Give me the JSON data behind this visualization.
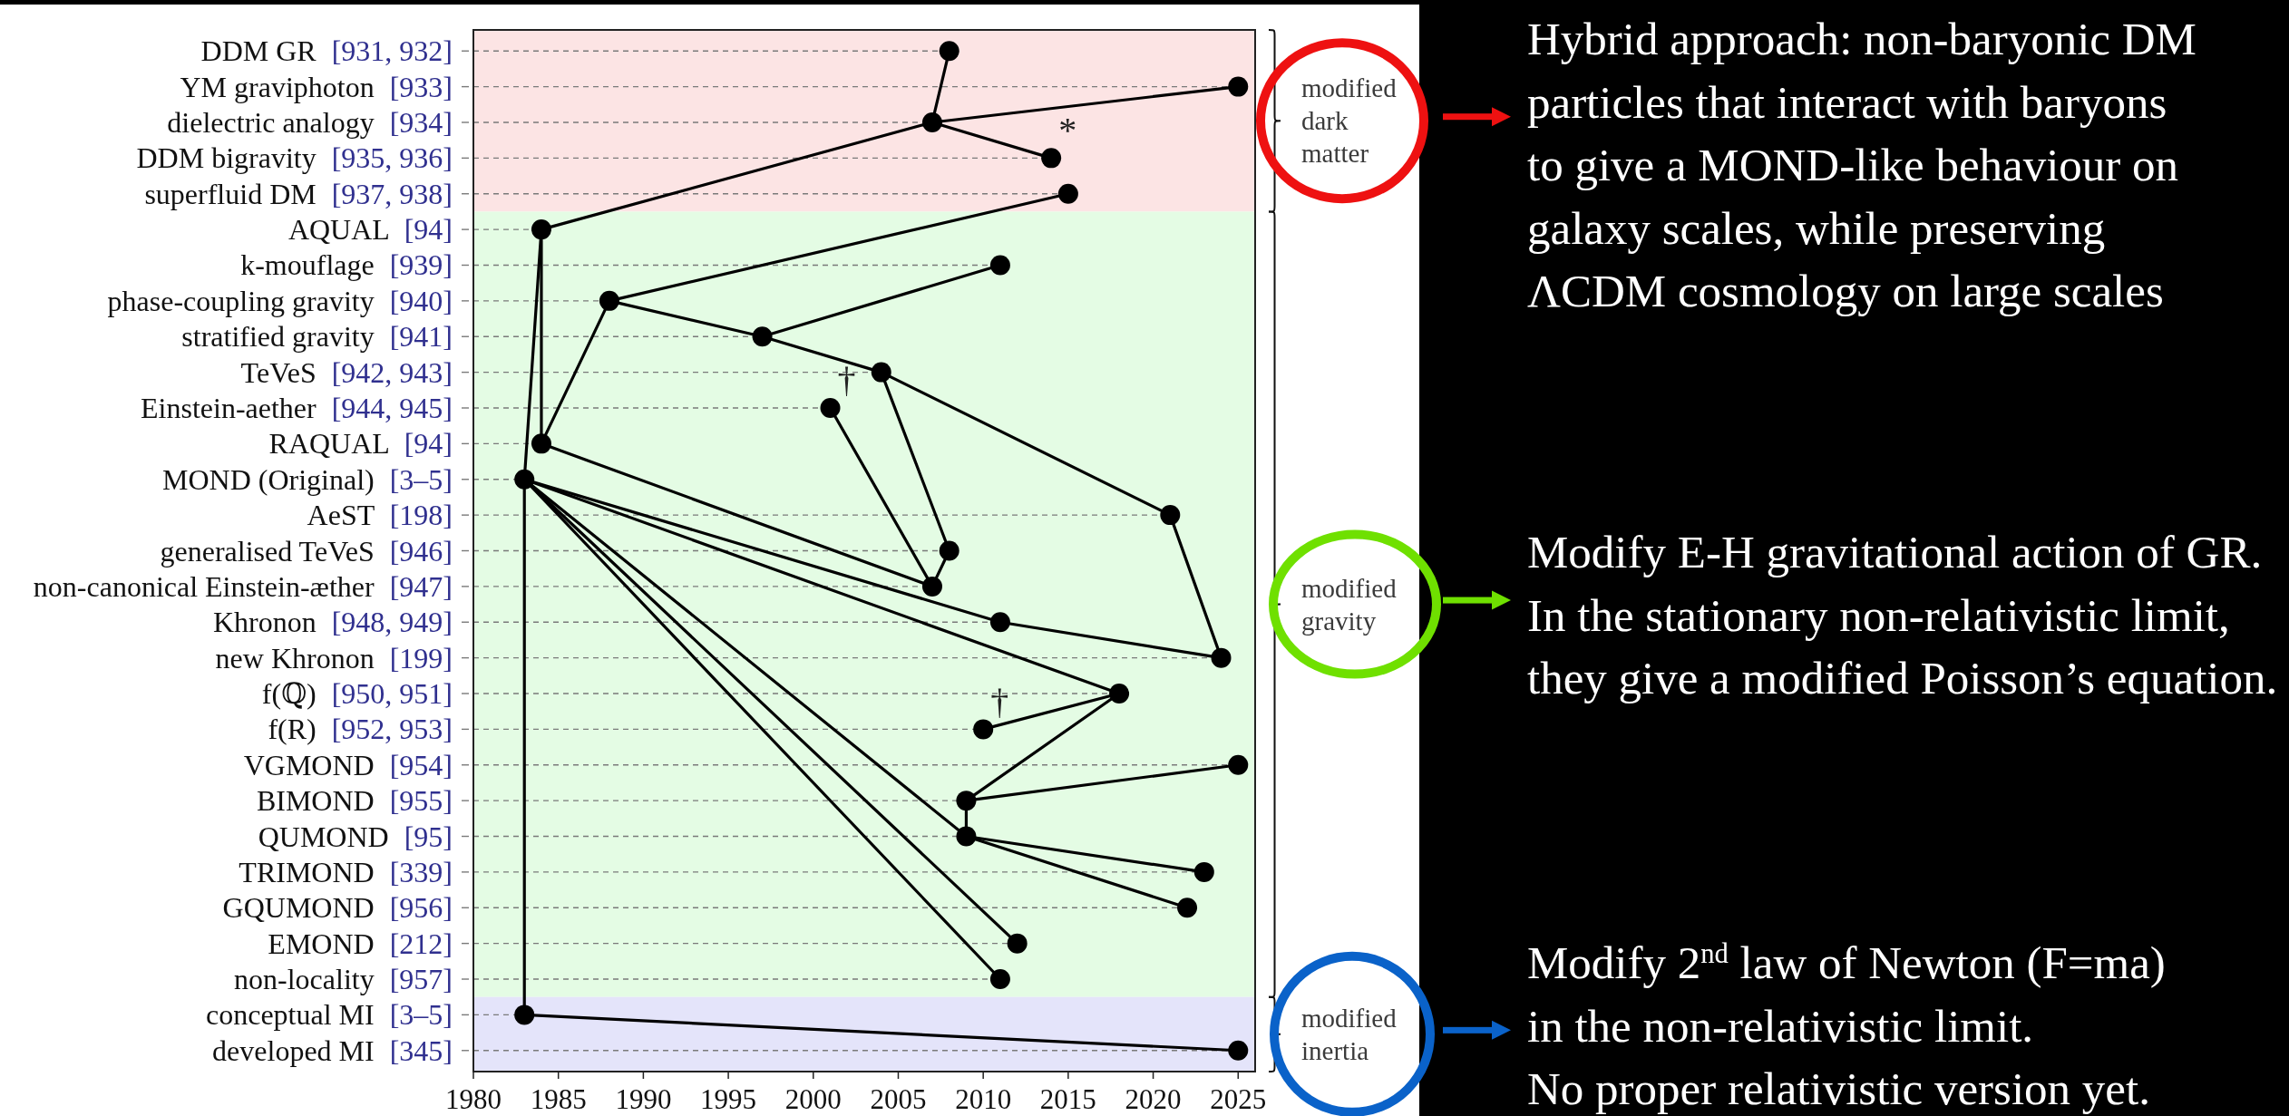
{
  "chart_data": {
    "type": "scatter",
    "orientation": "horizontal",
    "grid": "y",
    "categories": [
      "DDM GR [931, 932]",
      "YM graviphoton [933]",
      "dielectric analogy [934]",
      "DDM bigravity [935, 936]",
      "superfluid DM [937, 938]",
      "AQUAL [94]",
      "k-mouflage [939]",
      "phase-coupling gravity [940]",
      "stratified gravity [941]",
      "TeVeS [942, 943]",
      "Einstein-aether [944, 945]",
      "RAQUAL [94]",
      "MOND (Original) [3–5]",
      "AeST [198]",
      "generalised TeVeS [946]",
      "non-canonical Einstein-æther [947]",
      "Khronon [948, 949]",
      "new Khronon [199]",
      "f(ℚ) [950, 951]",
      "f(R) [952, 953]",
      "VGMOND [954]",
      "BIMOND [955]",
      "QUMOND [95]",
      "TRIMOND [339]",
      "GQUMOND [956]",
      "EMOND [212]",
      "non-locality [957]",
      "conceptual MI [3–5]",
      "developed MI [345]"
    ],
    "series": [
      {
        "color": "#000000",
        "marker": "circle",
        "values": [
          2008,
          2025,
          2007,
          2014,
          2015,
          1984,
          2011,
          1988,
          1997,
          2004,
          2001,
          1984,
          1983,
          2021,
          2008,
          2007,
          2011,
          2024,
          2018,
          2010,
          2025,
          2009,
          2009,
          2023,
          2022,
          2012,
          2011,
          1983,
          2025
        ]
      },
      {
        "type": "line",
        "color": "#000000",
        "values": [
          2008,
          null,
          2007,
          null,
          null,
          1984,
          null,
          null,
          null,
          null,
          null,
          null,
          1983,
          null,
          null,
          null,
          null,
          null,
          null,
          null,
          null,
          null,
          null,
          null,
          null,
          null,
          null,
          1983,
          2025
        ]
      },
      {
        "type": "line",
        "color": "#000000",
        "values": [
          null,
          2025,
          2007,
          2014,
          null,
          null,
          null,
          null,
          null,
          null,
          null,
          null,
          null,
          null,
          null,
          null,
          null,
          null,
          null,
          null,
          null,
          null,
          null,
          null,
          null,
          null,
          null,
          null,
          null
        ]
      },
      {
        "type": "line",
        "color": "#000000",
        "values": [
          null,
          null,
          null,
          null,
          2015,
          null,
          null,
          1988,
          1997,
          2004,
          null,
          null,
          null,
          2021,
          null,
          null,
          null,
          2024,
          null,
          null,
          null,
          null,
          null,
          null,
          null,
          null,
          null,
          null,
          null
        ]
      },
      {
        "type": "line",
        "color": "#000000",
        "values": [
          null,
          null,
          null,
          null,
          null,
          null,
          2011,
          null,
          1997,
          null,
          null,
          null,
          null,
          null,
          null,
          null,
          null,
          null,
          null,
          null,
          null,
          null,
          null,
          null,
          null,
          null,
          null,
          null,
          null
        ]
      },
      {
        "type": "line",
        "color": "#000000",
        "values": [
          null,
          null,
          null,
          null,
          null,
          null,
          null,
          null,
          null,
          2004,
          null,
          null,
          null,
          null,
          2008,
          2007,
          null,
          null,
          null,
          null,
          null,
          null,
          null,
          null,
          null,
          null,
          null,
          null,
          null
        ]
      },
      {
        "type": "line",
        "color": "#000000",
        "values": [
          null,
          null,
          null,
          null,
          null,
          null,
          null,
          null,
          null,
          null,
          2001,
          null,
          null,
          null,
          null,
          2007,
          null,
          null,
          null,
          null,
          null,
          null,
          null,
          null,
          null,
          null,
          null,
          null,
          null
        ]
      },
      {
        "type": "line",
        "color": "#000000",
        "values": [
          null,
          null,
          null,
          null,
          null,
          null,
          null,
          1988,
          null,
          null,
          null,
          1984,
          null,
          null,
          null,
          2007,
          null,
          null,
          null,
          null,
          null,
          null,
          null,
          null,
          null,
          null,
          null,
          null,
          null
        ]
      },
      {
        "type": "line",
        "color": "#000000",
        "values": [
          null,
          null,
          null,
          null,
          null,
          1984,
          null,
          null,
          null,
          null,
          null,
          1984,
          null,
          null,
          null,
          null,
          null,
          null,
          null,
          null,
          null,
          null,
          null,
          null,
          null,
          null,
          null,
          null,
          null
        ]
      },
      {
        "type": "line",
        "color": "#000000",
        "values": [
          null,
          null,
          null,
          null,
          null,
          null,
          null,
          null,
          null,
          null,
          null,
          null,
          1983,
          null,
          null,
          null,
          2011,
          2024,
          null,
          null,
          null,
          null,
          null,
          null,
          null,
          null,
          null,
          null,
          null
        ]
      },
      {
        "type": "line",
        "color": "#000000",
        "values": [
          null,
          null,
          null,
          null,
          null,
          null,
          null,
          null,
          null,
          null,
          null,
          null,
          1983,
          null,
          null,
          null,
          null,
          null,
          2018,
          2010,
          null,
          null,
          null,
          null,
          null,
          null,
          null,
          null,
          null
        ]
      },
      {
        "type": "line",
        "color": "#000000",
        "values": [
          null,
          null,
          null,
          null,
          null,
          null,
          null,
          null,
          null,
          null,
          null,
          null,
          null,
          null,
          null,
          null,
          null,
          null,
          2018,
          null,
          null,
          2009,
          2009,
          2023,
          null,
          null,
          null,
          null,
          null
        ]
      },
      {
        "type": "line",
        "color": "#000000",
        "values": [
          null,
          null,
          null,
          null,
          null,
          null,
          null,
          null,
          null,
          null,
          null,
          null,
          null,
          null,
          null,
          null,
          null,
          null,
          null,
          null,
          2025,
          2009,
          null,
          null,
          null,
          null,
          null,
          null,
          null
        ]
      },
      {
        "type": "line",
        "color": "#000000",
        "values": [
          null,
          null,
          null,
          null,
          null,
          null,
          null,
          null,
          null,
          null,
          null,
          null,
          null,
          null,
          null,
          null,
          null,
          null,
          null,
          null,
          null,
          null,
          2009,
          null,
          2022,
          null,
          null,
          null,
          null
        ]
      },
      {
        "type": "line",
        "color": "#000000",
        "values": [
          null,
          null,
          null,
          null,
          null,
          null,
          null,
          null,
          null,
          null,
          null,
          null,
          1983,
          null,
          null,
          null,
          null,
          null,
          null,
          null,
          null,
          null,
          2009,
          null,
          null,
          null,
          null,
          null,
          null
        ]
      },
      {
        "type": "line",
        "color": "#000000",
        "values": [
          null,
          null,
          null,
          null,
          null,
          null,
          null,
          null,
          null,
          null,
          null,
          null,
          1983,
          null,
          null,
          null,
          null,
          null,
          null,
          null,
          null,
          null,
          null,
          null,
          null,
          2012,
          null,
          null,
          null
        ]
      },
      {
        "type": "line",
        "color": "#000000",
        "values": [
          null,
          null,
          null,
          null,
          null,
          null,
          null,
          null,
          null,
          null,
          null,
          null,
          1983,
          null,
          null,
          null,
          null,
          null,
          null,
          null,
          null,
          null,
          null,
          null,
          null,
          null,
          2011,
          null,
          null
        ]
      }
    ],
    "xlim": [
      1980,
      2026
    ],
    "xticks": [
      1980,
      1985,
      1990,
      1995,
      2000,
      2005,
      2010,
      2015,
      2020,
      2025
    ],
    "bands": [
      {
        "axis": "y",
        "from": "DDM GR [931, 932]",
        "to": "superfluid DM [937, 938]",
        "label": "modified dark matter",
        "color": "#fce4e4"
      },
      {
        "axis": "y",
        "from": "AQUAL [94]",
        "to": "non-locality [957]",
        "label": "modified gravity",
        "color": "#e4fce4"
      },
      {
        "axis": "y",
        "from": "conceptual MI [3–5]",
        "to": "developed MI [345]",
        "label": "modified inertia",
        "color": "#e4e4fa"
      }
    ],
    "annotations": [
      "Hybrid approach: non-baryonic DM\nparticles that interact with baryons\nto give a MOND-like behaviour on\ngalaxy scales, while preserving\nΛCDM cosmology on large scales",
      "Modify E-H gravitational action of GR.\nIn the stationary non-relativistic limit,\nthey give a modified Poisson’s equation.",
      "Modify 2$^{nd}$ law of Newton (F=ma)\nin the non-relativistic limit.\nNo proper relativistic version yet.",
      {
        "text": "*",
        "x": 2014,
        "y": "DDM bigravity [935, 936]"
      },
      {
        "text": "†",
        "x": 2001,
        "y": "Einstein-aether [944, 945]"
      },
      {
        "text": "†",
        "x": 2010,
        "y": "f(R) [952, 953]"
      }
    ]
  }
}
